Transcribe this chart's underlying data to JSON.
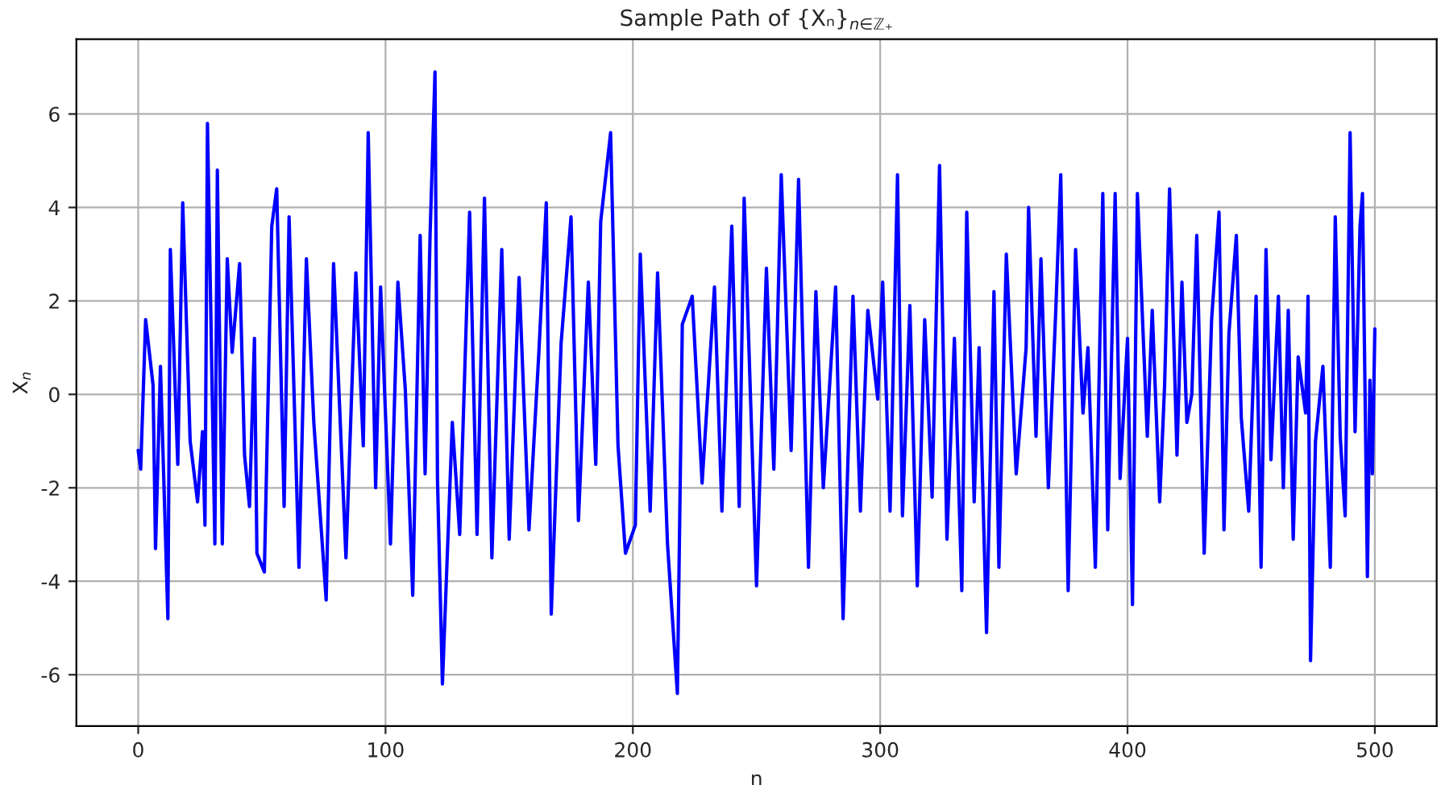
{
  "chart_data": {
    "type": "line",
    "title": "Sample Path of {Xₙ}$_{n∈ℤ₊}$",
    "xlabel": "n",
    "ylabel": "X$_{n}$",
    "xlim": [
      -25,
      525
    ],
    "ylim": [
      -7.1,
      7.6
    ],
    "xticks": [
      0,
      100,
      200,
      300,
      400,
      500
    ],
    "yticks": [
      -6,
      -4,
      -2,
      0,
      2,
      4,
      6
    ],
    "grid": true,
    "marker": "none",
    "line_style": "solid",
    "series": [
      {
        "color": "#0000ff",
        "x": [
          0,
          1,
          3,
          6,
          7,
          9,
          12,
          13,
          16,
          18,
          21,
          24,
          26,
          27,
          28,
          31,
          32,
          34,
          36,
          38,
          41,
          43,
          45,
          47,
          48,
          51,
          54,
          56,
          59,
          61,
          65,
          68,
          71,
          76,
          79,
          84,
          88,
          91,
          93,
          96,
          98,
          102,
          105,
          108,
          111,
          114,
          116,
          118,
          120,
          121,
          123,
          127,
          130,
          134,
          137,
          140,
          143,
          147,
          150,
          154,
          158,
          162,
          165,
          167,
          171,
          175,
          178,
          182,
          185,
          187,
          191,
          194,
          197,
          201,
          203,
          207,
          210,
          214,
          218,
          220,
          224,
          228,
          233,
          236,
          240,
          243,
          245,
          250,
          254,
          257,
          260,
          264,
          267,
          271,
          274,
          277,
          282,
          285,
          289,
          292,
          295,
          299,
          301,
          304,
          307,
          309,
          312,
          315,
          318,
          321,
          324,
          327,
          330,
          333,
          335,
          338,
          340,
          343,
          346,
          348,
          351,
          355,
          359,
          360,
          363,
          365,
          368,
          371,
          373,
          376,
          379,
          382,
          384,
          387,
          390,
          392,
          395,
          397,
          400,
          402,
          404,
          408,
          410,
          413,
          415,
          417,
          420,
          422,
          424,
          426,
          428,
          431,
          434,
          437,
          439,
          441,
          444,
          446,
          449,
          452,
          454,
          456,
          458,
          461,
          463,
          465,
          467,
          469,
          472,
          473,
          474,
          476,
          479,
          482,
          484,
          486,
          488,
          490,
          492,
          494,
          495,
          497,
          498,
          499,
          500
        ],
        "values": [
          -1.2,
          -1.6,
          1.6,
          0.2,
          -3.3,
          0.6,
          -4.8,
          3.1,
          -1.5,
          4.1,
          -1.0,
          -2.3,
          -0.8,
          -2.8,
          5.8,
          -3.2,
          4.8,
          -3.2,
          2.9,
          0.9,
          2.8,
          -1.3,
          -2.4,
          1.2,
          -3.4,
          -3.8,
          3.6,
          4.4,
          -2.4,
          3.8,
          -3.7,
          2.9,
          -0.6,
          -4.4,
          2.8,
          -3.5,
          2.6,
          -1.1,
          5.6,
          -2.0,
          2.3,
          -3.2,
          2.4,
          0.1,
          -4.3,
          3.4,
          -1.7,
          3.4,
          6.9,
          -1.8,
          -6.2,
          -0.6,
          -3.0,
          3.9,
          -3.0,
          4.2,
          -3.5,
          3.1,
          -3.1,
          2.5,
          -2.9,
          0.9,
          4.1,
          -4.7,
          1.1,
          3.8,
          -2.7,
          2.4,
          -1.5,
          3.7,
          5.6,
          -1.1,
          -3.4,
          -2.8,
          3.0,
          -2.5,
          2.6,
          -3.2,
          -6.4,
          1.5,
          2.1,
          -1.9,
          2.3,
          -2.5,
          3.6,
          -2.4,
          4.2,
          -4.1,
          2.7,
          -1.6,
          4.7,
          -1.2,
          4.6,
          -3.7,
          2.2,
          -2.0,
          2.3,
          -4.8,
          2.1,
          -2.5,
          1.8,
          -0.1,
          2.4,
          -2.5,
          4.7,
          -2.6,
          1.9,
          -4.1,
          1.6,
          -2.2,
          4.9,
          -3.1,
          1.2,
          -4.2,
          3.9,
          -2.3,
          1.0,
          -5.1,
          2.2,
          -3.7,
          3.0,
          -1.7,
          1.0,
          4.0,
          -0.9,
          2.9,
          -2.0,
          1.8,
          4.7,
          -4.2,
          3.1,
          -0.4,
          1.0,
          -3.7,
          4.3,
          -2.9,
          4.3,
          -1.8,
          1.2,
          -4.5,
          4.3,
          -0.9,
          1.8,
          -2.3,
          0.2,
          4.4,
          -1.3,
          2.4,
          -0.6,
          0.0,
          3.4,
          -3.4,
          1.6,
          3.9,
          -2.9,
          1.3,
          3.4,
          -0.5,
          -2.5,
          2.1,
          -3.7,
          3.1,
          -1.4,
          2.1,
          -2.0,
          1.8,
          -3.1,
          0.8,
          -0.4,
          2.1,
          -5.7,
          -1.0,
          0.6,
          -3.7,
          3.8,
          -0.9,
          -2.6,
          5.6,
          -0.8,
          3.6,
          4.3,
          -3.9,
          0.3,
          -1.7,
          1.4
        ]
      }
    ]
  }
}
